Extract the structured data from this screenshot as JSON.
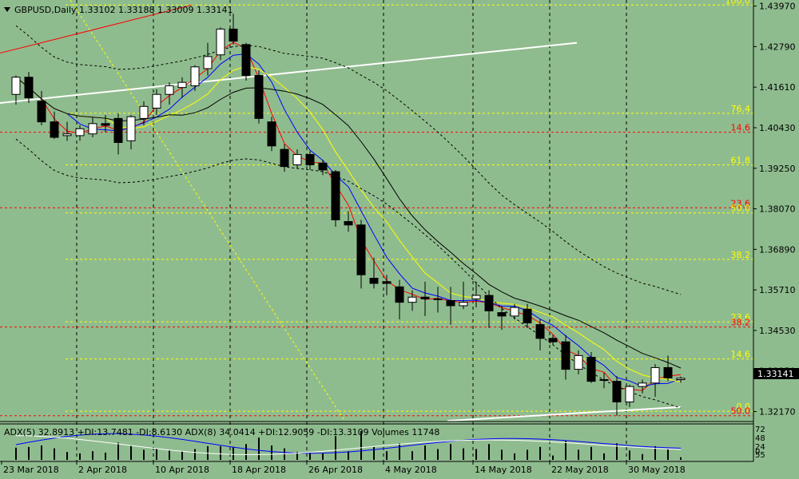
{
  "colors": {
    "background": "#8fbc8f",
    "bull_candle": "#ffffff",
    "bear_candle": "#000000",
    "grid": "#000000",
    "fib_yellow": "#ffff00",
    "fib_red": "#ff0000",
    "trendline": "#ffffff",
    "ma_red": "#ff0000",
    "ma_blue": "#0000ff",
    "ma_yellow": "#ffff00",
    "ma_black": "#000000",
    "price_label_bg": "#000000",
    "price_label_text": "#ffffff"
  },
  "header": {
    "menu_icon": "triangle-down-icon",
    "symbol_info": "GBPUSD,Daily  1.33102 1.33188 1.33009 1.33141"
  },
  "current_price": "1.33141",
  "indicator_text": "ADX(5) 32.8913 +DI:13.7481 -DI:8.6130  ADX(8) 34.0414 +DI:12.9059 -DI:13.3109  Volumes 11748",
  "indicator_scale_labels": [
    "72",
    "48",
    "24",
    "0",
    "55"
  ],
  "fib_levels": [
    {
      "label": "100.0",
      "value": 1.44,
      "color": "yellow"
    },
    {
      "label": "76.4",
      "value": 1.4085,
      "color": "yellow"
    },
    {
      "label": "14.6",
      "value": 1.403,
      "color": "red"
    },
    {
      "label": "61.8",
      "value": 1.3935,
      "color": "yellow"
    },
    {
      "label": "23.6",
      "value": 1.381,
      "color": "red"
    },
    {
      "label": "50.0",
      "value": 1.3795,
      "color": "yellow"
    },
    {
      "label": "38.2",
      "value": 1.366,
      "color": "yellow"
    },
    {
      "label": "23.6",
      "value": 1.3478,
      "color": "yellow"
    },
    {
      "label": "38.2",
      "value": 1.3463,
      "color": "red"
    },
    {
      "label": "14.6",
      "value": 1.337,
      "color": "yellow"
    },
    {
      "label": "0.0",
      "value": 1.3218,
      "color": "yellow"
    },
    {
      "label": "50.0",
      "value": 1.3205,
      "color": "red"
    }
  ],
  "chart_data": {
    "type": "candlestick",
    "price_axis_labels": [
      "1.43970",
      "1.42790",
      "1.41610",
      "1.40430",
      "1.39250",
      "1.38070",
      "1.36890",
      "1.35710",
      "1.34530",
      "1.33350",
      "1.32170"
    ],
    "ylim": [
      1.3195,
      1.441
    ],
    "date_labels": [
      "23 Mar 2018",
      "2 Apr 2018",
      "10 Apr 2018",
      "18 Apr 2018",
      "26 Apr 2018",
      "4 May 2018",
      "14 May 2018",
      "22 May 2018",
      "30 May 2018"
    ],
    "candles": [
      {
        "date": "2018-03-23",
        "o": 1.414,
        "h": 1.4195,
        "l": 1.411,
        "c": 1.419
      },
      {
        "date": "2018-03-26",
        "o": 1.419,
        "h": 1.4205,
        "l": 1.4115,
        "c": 1.413
      },
      {
        "date": "2018-03-27",
        "o": 1.412,
        "h": 1.415,
        "l": 1.405,
        "c": 1.406
      },
      {
        "date": "2018-03-28",
        "o": 1.406,
        "h": 1.409,
        "l": 1.401,
        "c": 1.4015
      },
      {
        "date": "2018-03-29",
        "o": 1.402,
        "h": 1.406,
        "l": 1.4005,
        "c": 1.4025
      },
      {
        "date": "2018-03-30",
        "o": 1.402,
        "h": 1.405,
        "l": 1.4005,
        "c": 1.404
      },
      {
        "date": "2018-04-02",
        "o": 1.4025,
        "h": 1.4075,
        "l": 1.4015,
        "c": 1.4055
      },
      {
        "date": "2018-04-03",
        "o": 1.4055,
        "h": 1.408,
        "l": 1.403,
        "c": 1.405
      },
      {
        "date": "2018-04-04",
        "o": 1.407,
        "h": 1.4085,
        "l": 1.3965,
        "c": 1.4
      },
      {
        "date": "2018-04-05",
        "o": 1.4005,
        "h": 1.408,
        "l": 1.398,
        "c": 1.4075
      },
      {
        "date": "2018-04-06",
        "o": 1.407,
        "h": 1.412,
        "l": 1.405,
        "c": 1.4105
      },
      {
        "date": "2018-04-09",
        "o": 1.41,
        "h": 1.4155,
        "l": 1.408,
        "c": 1.414
      },
      {
        "date": "2018-04-10",
        "o": 1.414,
        "h": 1.4175,
        "l": 1.411,
        "c": 1.4165
      },
      {
        "date": "2018-04-11",
        "o": 1.416,
        "h": 1.419,
        "l": 1.413,
        "c": 1.4175
      },
      {
        "date": "2018-04-12",
        "o": 1.4165,
        "h": 1.4225,
        "l": 1.415,
        "c": 1.422
      },
      {
        "date": "2018-04-13",
        "o": 1.4215,
        "h": 1.429,
        "l": 1.4195,
        "c": 1.425
      },
      {
        "date": "2018-04-16",
        "o": 1.4255,
        "h": 1.4335,
        "l": 1.424,
        "c": 1.433
      },
      {
        "date": "2018-04-17",
        "o": 1.433,
        "h": 1.4375,
        "l": 1.4285,
        "c": 1.4295
      },
      {
        "date": "2018-04-18",
        "o": 1.4285,
        "h": 1.429,
        "l": 1.418,
        "c": 1.4195
      },
      {
        "date": "2018-04-19",
        "o": 1.4195,
        "h": 1.421,
        "l": 1.4055,
        "c": 1.407
      },
      {
        "date": "2018-04-20",
        "o": 1.406,
        "h": 1.4075,
        "l": 1.3975,
        "c": 1.399
      },
      {
        "date": "2018-04-23",
        "o": 1.398,
        "h": 1.3995,
        "l": 1.3915,
        "c": 1.393
      },
      {
        "date": "2018-04-24",
        "o": 1.3935,
        "h": 1.398,
        "l": 1.3925,
        "c": 1.3965
      },
      {
        "date": "2018-04-25",
        "o": 1.3965,
        "h": 1.3975,
        "l": 1.392,
        "c": 1.3935
      },
      {
        "date": "2018-04-26",
        "o": 1.394,
        "h": 1.395,
        "l": 1.3905,
        "c": 1.392
      },
      {
        "date": "2018-04-27",
        "o": 1.3915,
        "h": 1.392,
        "l": 1.3755,
        "c": 1.3775
      },
      {
        "date": "2018-04-30",
        "o": 1.377,
        "h": 1.38,
        "l": 1.374,
        "c": 1.376
      },
      {
        "date": "2018-05-01",
        "o": 1.376,
        "h": 1.3775,
        "l": 1.3575,
        "c": 1.3615
      },
      {
        "date": "2018-05-02",
        "o": 1.3605,
        "h": 1.3665,
        "l": 1.3575,
        "c": 1.359
      },
      {
        "date": "2018-05-03",
        "o": 1.3595,
        "h": 1.3615,
        "l": 1.3555,
        "c": 1.359
      },
      {
        "date": "2018-05-04",
        "o": 1.358,
        "h": 1.36,
        "l": 1.3485,
        "c": 1.3535
      },
      {
        "date": "2018-05-07",
        "o": 1.3535,
        "h": 1.357,
        "l": 1.351,
        "c": 1.355
      },
      {
        "date": "2018-05-08",
        "o": 1.355,
        "h": 1.3595,
        "l": 1.3495,
        "c": 1.3545
      },
      {
        "date": "2018-05-09",
        "o": 1.3545,
        "h": 1.358,
        "l": 1.3505,
        "c": 1.3545
      },
      {
        "date": "2018-05-10",
        "o": 1.354,
        "h": 1.358,
        "l": 1.347,
        "c": 1.3525
      },
      {
        "date": "2018-05-11",
        "o": 1.3525,
        "h": 1.3595,
        "l": 1.3515,
        "c": 1.3535
      },
      {
        "date": "2018-05-14",
        "o": 1.3545,
        "h": 1.3595,
        "l": 1.352,
        "c": 1.3555
      },
      {
        "date": "2018-05-15",
        "o": 1.3555,
        "h": 1.357,
        "l": 1.346,
        "c": 1.351
      },
      {
        "date": "2018-05-16",
        "o": 1.3505,
        "h": 1.3525,
        "l": 1.3455,
        "c": 1.3495
      },
      {
        "date": "2018-05-17",
        "o": 1.3495,
        "h": 1.353,
        "l": 1.3485,
        "c": 1.352
      },
      {
        "date": "2018-05-18",
        "o": 1.3515,
        "h": 1.353,
        "l": 1.346,
        "c": 1.3475
      },
      {
        "date": "2018-05-21",
        "o": 1.347,
        "h": 1.3485,
        "l": 1.3395,
        "c": 1.343
      },
      {
        "date": "2018-05-22",
        "o": 1.343,
        "h": 1.344,
        "l": 1.341,
        "c": 1.342
      },
      {
        "date": "2018-05-23",
        "o": 1.342,
        "h": 1.344,
        "l": 1.331,
        "c": 1.334
      },
      {
        "date": "2018-05-24",
        "o": 1.334,
        "h": 1.3395,
        "l": 1.3325,
        "c": 1.338
      },
      {
        "date": "2018-05-25",
        "o": 1.3375,
        "h": 1.339,
        "l": 1.33,
        "c": 1.3305
      },
      {
        "date": "2018-05-28",
        "o": 1.331,
        "h": 1.333,
        "l": 1.3285,
        "c": 1.331
      },
      {
        "date": "2018-05-29",
        "o": 1.3305,
        "h": 1.332,
        "l": 1.3205,
        "c": 1.3245
      },
      {
        "date": "2018-05-30",
        "o": 1.3245,
        "h": 1.3295,
        "l": 1.323,
        "c": 1.329
      },
      {
        "date": "2018-05-31",
        "o": 1.329,
        "h": 1.331,
        "l": 1.327,
        "c": 1.33
      },
      {
        "date": "2018-06-01",
        "o": 1.33,
        "h": 1.3355,
        "l": 1.326,
        "c": 1.3345
      },
      {
        "date": "2018-06-04",
        "o": 1.3345,
        "h": 1.338,
        "l": 1.3305,
        "c": 1.3315
      },
      {
        "date": "2018-06-05",
        "o": 1.331,
        "h": 1.3319,
        "l": 1.3301,
        "c": 1.3314
      }
    ]
  }
}
